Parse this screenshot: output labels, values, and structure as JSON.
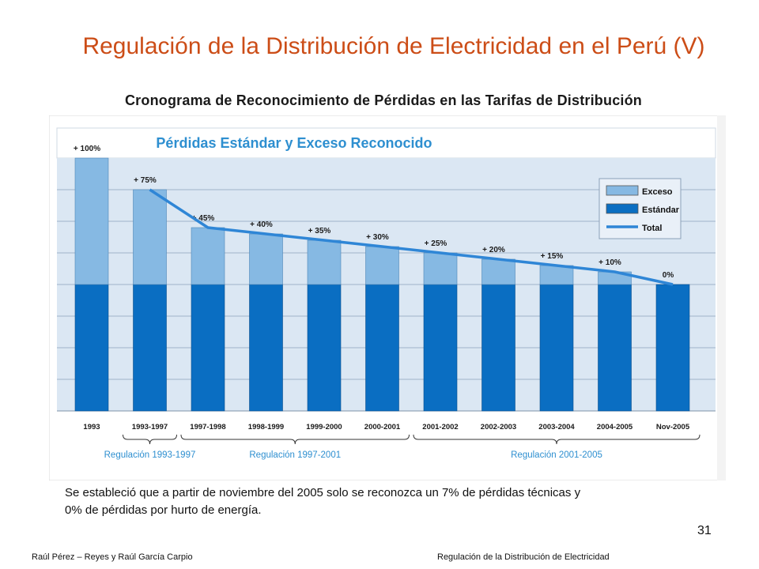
{
  "slide": {
    "title": "Regulación de la Distribución de Electricidad en el Perú (V)",
    "subtitle": "Cronograma de Reconocimiento de Pérdidas en las Tarifas de Distribución",
    "caption_line1": "Se estableció que a partir de noviembre del 2005 solo se reconozca un 7% de pérdidas técnicas y",
    "caption_line2": "0% de pérdidas por hurto de energía.",
    "page_number": "31",
    "footer_left": "Raúl Pérez – Reyes y Raúl García Carpio",
    "footer_right": "Regulación de la Distribución de Electricidad"
  },
  "colors": {
    "title": "#cc4d17",
    "chart_title": "#2e8fd0",
    "plot_bg": "#dbe7f3",
    "exceso": "#86b9e3",
    "estandar": "#0a6ec2",
    "total_line": "#2f86d6",
    "regulation_label": "#2e8fd0"
  },
  "chart_data": {
    "type": "bar",
    "title": "Pérdidas Estándar y Exceso Reconocido",
    "categories": [
      "1993",
      "1993-1997",
      "1997-1998",
      "1998-1999",
      "1999-2000",
      "2000-2001",
      "2001-2002",
      "2002-2003",
      "2003-2004",
      "2004-2005",
      "Nov-2005"
    ],
    "series": [
      {
        "name": "Estándar",
        "values": [
          100,
          100,
          100,
          100,
          100,
          100,
          100,
          100,
          100,
          100,
          100
        ]
      },
      {
        "name": "Exceso",
        "values": [
          100,
          75,
          45,
          40,
          35,
          30,
          25,
          20,
          15,
          10,
          0
        ]
      }
    ],
    "total_line": {
      "name": "Total",
      "start_index": 1,
      "values": [
        175,
        145,
        140,
        135,
        130,
        125,
        120,
        115,
        110,
        100
      ]
    },
    "data_labels": [
      "+ 100%",
      "+ 75%",
      "+ 45%",
      "+ 40%",
      "+ 35%",
      "+ 30%",
      "+ 25%",
      "+ 20%",
      "+ 15%",
      "+ 10%",
      "0%"
    ],
    "legend": [
      "Exceso",
      "Estándar",
      "Total"
    ],
    "legend_position": "top-right",
    "ylim": [
      0,
      200
    ],
    "grid": true,
    "regulation_periods": [
      {
        "label": "Regulación 1993-1997",
        "from_index": 1,
        "to_index": 1
      },
      {
        "label": "Regulación 1997-2001",
        "from_index": 2,
        "to_index": 5
      },
      {
        "label": "Regulación 2001-2005",
        "from_index": 6,
        "to_index": 10
      }
    ]
  }
}
